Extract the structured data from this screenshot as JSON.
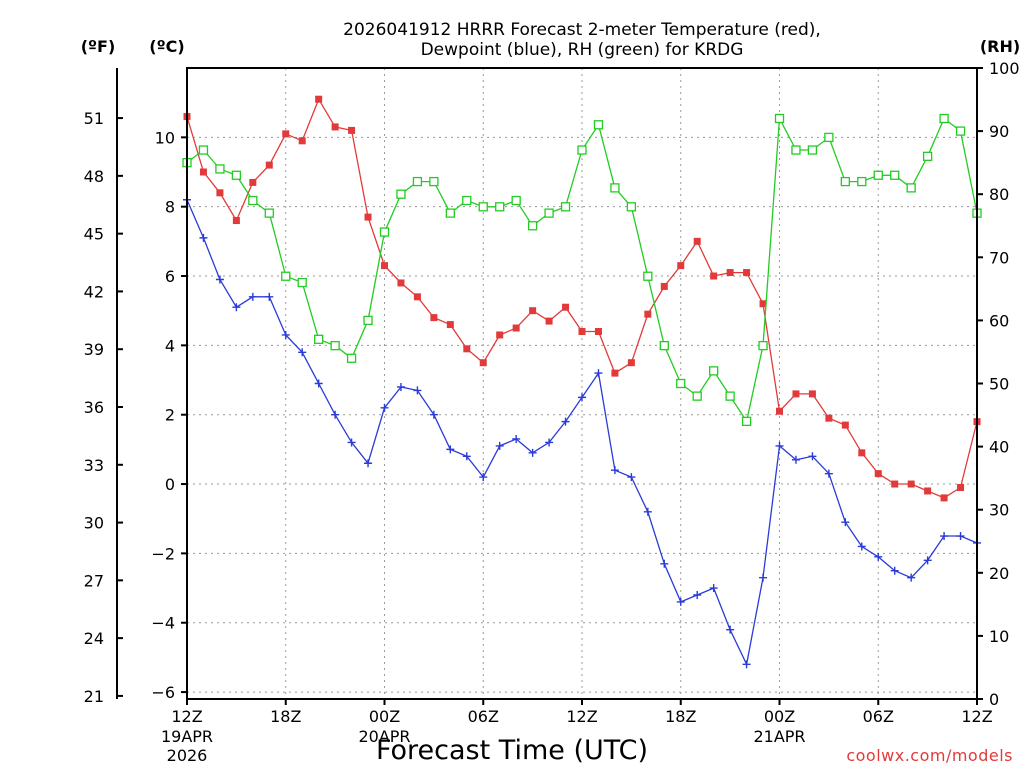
{
  "chart_data": {
    "type": "line",
    "title_line1": "2026041912 HRRR Forecast 2-meter Temperature (red),",
    "title_line2": "Dewpoint (blue), RH (green) for KRDG",
    "xlabel": "Forecast Time (UTC)",
    "credit": "coolwx.com/models",
    "units": {
      "fahrenheit": "(ºF)",
      "celsius": "(ºC)",
      "rh": "(RH)"
    },
    "x_range_hours": [
      0,
      48
    ],
    "celsius_range": [
      -6.2,
      12.0
    ],
    "rh_range": [
      0,
      100
    ],
    "grid": "dotted",
    "x_ticks": [
      {
        "hour": 0,
        "label": "12Z",
        "date": "19APR",
        "year": "2026"
      },
      {
        "hour": 6,
        "label": "18Z"
      },
      {
        "hour": 12,
        "label": "00Z",
        "date": "20APR"
      },
      {
        "hour": 18,
        "label": "06Z"
      },
      {
        "hour": 24,
        "label": "12Z"
      },
      {
        "hour": 30,
        "label": "18Z"
      },
      {
        "hour": 36,
        "label": "00Z",
        "date": "21APR"
      },
      {
        "hour": 42,
        "label": "06Z"
      },
      {
        "hour": 48,
        "label": "12Z"
      }
    ],
    "celsius_ticks": [
      -6,
      -4,
      -2,
      0,
      2,
      4,
      6,
      8,
      10
    ],
    "fahrenheit_ticks": [
      21,
      24,
      27,
      30,
      33,
      36,
      39,
      42,
      45,
      48,
      51
    ],
    "rh_ticks": [
      0,
      10,
      20,
      30,
      40,
      50,
      60,
      70,
      80,
      90,
      100
    ],
    "series": [
      {
        "name": "Temperature",
        "color": "#e23a3a",
        "axis": "celsius",
        "marker": "filled-square",
        "values": [
          10.6,
          9.0,
          8.4,
          7.6,
          8.7,
          9.2,
          10.1,
          9.9,
          11.1,
          10.3,
          10.2,
          7.7,
          6.3,
          5.8,
          5.4,
          4.8,
          4.6,
          3.9,
          3.5,
          4.3,
          4.5,
          5.0,
          4.7,
          5.1,
          4.4,
          4.4,
          3.2,
          3.5,
          4.9,
          5.7,
          6.3,
          7.0,
          6.0,
          6.1,
          6.1,
          5.2,
          2.1,
          2.6,
          2.6,
          1.9,
          1.7,
          0.9,
          0.3,
          0.0,
          0.0,
          -0.2,
          -0.4,
          -0.1,
          1.8
        ]
      },
      {
        "name": "Dewpoint",
        "color": "#2a3bd8",
        "axis": "celsius",
        "marker": "plus",
        "values": [
          8.2,
          7.1,
          5.9,
          5.1,
          5.4,
          5.4,
          4.3,
          3.8,
          2.9,
          2.0,
          1.2,
          0.6,
          2.2,
          2.8,
          2.7,
          2.0,
          1.0,
          0.8,
          0.2,
          1.1,
          1.3,
          0.9,
          1.2,
          1.8,
          2.5,
          3.2,
          0.4,
          0.2,
          -0.8,
          -2.3,
          -3.4,
          -3.2,
          -3.0,
          -4.2,
          -5.2,
          -2.7,
          1.1,
          0.7,
          0.8,
          0.3,
          -1.1,
          -1.8,
          -2.1,
          -2.5,
          -2.7,
          -2.2,
          -1.5,
          -1.5,
          -1.7
        ]
      },
      {
        "name": "RH",
        "color": "#22cc22",
        "axis": "rh",
        "marker": "open-square",
        "values": [
          85,
          87,
          84,
          83,
          79,
          77,
          67,
          66,
          57,
          56,
          54,
          60,
          74,
          80,
          82,
          82,
          77,
          79,
          78,
          78,
          79,
          75,
          77,
          78,
          87,
          91,
          81,
          78,
          67,
          56,
          50,
          48,
          52,
          48,
          44,
          56,
          92,
          87,
          87,
          89,
          82,
          82,
          83,
          83,
          81,
          86,
          92,
          90,
          77
        ]
      }
    ]
  }
}
